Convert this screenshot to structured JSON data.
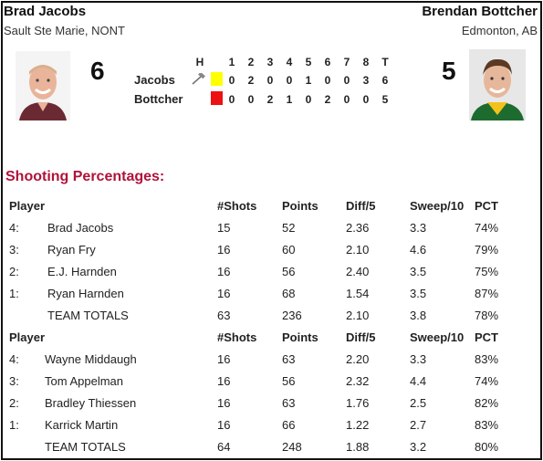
{
  "teams": {
    "home": {
      "name": "Brad Jacobs",
      "location": "Sault Ste Marie, NONT",
      "score": "6",
      "short": "Jacobs",
      "color": "#ffff00"
    },
    "away": {
      "name": "Brendan Bottcher",
      "location": "Edmonton, AB",
      "score": "5",
      "short": "Bottcher",
      "color": "#ee1111"
    }
  },
  "linescore": {
    "headers": [
      "H",
      "1",
      "2",
      "3",
      "4",
      "5",
      "6",
      "7",
      "8",
      "T"
    ],
    "home": [
      "0",
      "2",
      "0",
      "0",
      "1",
      "0",
      "0",
      "3",
      "6"
    ],
    "away": [
      "0",
      "0",
      "2",
      "1",
      "0",
      "2",
      "0",
      "0",
      "5"
    ]
  },
  "shooting": {
    "title": "Shooting Percentages",
    "title_suffix": ":",
    "columns": [
      "Player",
      "#Shots",
      "Points",
      "Diff/5",
      "Sweep/10",
      "PCT"
    ],
    "home_columns": [
      "Player",
      "#Shots",
      "Points",
      "Diff/5",
      "Sweep/10",
      "PCT"
    ],
    "away_columns": [
      "Player",
      "#Shots",
      "Points",
      "Diff/5",
      "Sweep/10",
      "PCT"
    ],
    "home_rows": [
      {
        "pos": "4:",
        "name": "Brad Jacobs",
        "shots": "15",
        "points": "52",
        "diff": "2.36",
        "sweep": "3.3",
        "pct": "74%"
      },
      {
        "pos": "3:",
        "name": "Ryan Fry",
        "shots": "16",
        "points": "60",
        "diff": "2.10",
        "sweep": "4.6",
        "pct": "79%"
      },
      {
        "pos": "2:",
        "name": "E.J. Harnden",
        "shots": "16",
        "points": "56",
        "diff": "2.40",
        "sweep": "3.5",
        "pct": "75%"
      },
      {
        "pos": "1:",
        "name": "Ryan Harnden",
        "shots": "16",
        "points": "68",
        "diff": "1.54",
        "sweep": "3.5",
        "pct": "87%"
      },
      {
        "pos": "",
        "name": "TEAM TOTALS",
        "shots": "63",
        "points": "236",
        "diff": "2.10",
        "sweep": "3.8",
        "pct": "78%"
      }
    ],
    "away_rows": [
      {
        "pos": "4:",
        "name": "Wayne Middaugh",
        "shots": "16",
        "points": "63",
        "diff": "2.20",
        "sweep": "3.3",
        "pct": "83%"
      },
      {
        "pos": "3:",
        "name": "Tom Appelman",
        "shots": "16",
        "points": "56",
        "diff": "2.32",
        "sweep": "4.4",
        "pct": "74%"
      },
      {
        "pos": "2:",
        "name": "Bradley Thiessen",
        "shots": "16",
        "points": "63",
        "diff": "1.76",
        "sweep": "2.5",
        "pct": "82%"
      },
      {
        "pos": "1:",
        "name": "Karrick Martin",
        "shots": "16",
        "points": "66",
        "diff": "1.22",
        "sweep": "2.7",
        "pct": "83%"
      },
      {
        "pos": "",
        "name": "TEAM TOTALS",
        "shots": "64",
        "points": "248",
        "diff": "1.88",
        "sweep": "3.2",
        "pct": "80%"
      }
    ]
  },
  "icons": {
    "hammer": "hammer-icon"
  }
}
